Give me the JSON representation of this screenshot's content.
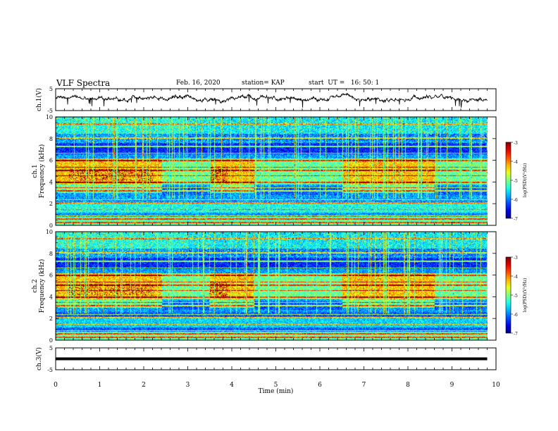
{
  "header": {
    "title": "VLF Spectra",
    "date": "Feb. 16, 2020",
    "station": "station= KAP",
    "start": "start  UT =   16: 50: 1"
  },
  "chart_data": [
    {
      "type": "line",
      "id": "ch1-waveform",
      "ylabel": "ch.1(V)",
      "yticks": [
        "5",
        "-5"
      ],
      "ylim": [
        -5,
        5
      ],
      "xlim": [
        0,
        10
      ],
      "x_extent": [
        0,
        9.8
      ],
      "description_level": "noisy signal around +0.5 V",
      "color": "#000000"
    },
    {
      "type": "heatmap",
      "id": "ch1-spectrogram",
      "ylabel": "ch.1\nFrequency (kHz)",
      "ylabel_lines": [
        "ch.1",
        "Frequency (kHz)"
      ],
      "yticks": [
        "0",
        "2",
        "4",
        "6",
        "8",
        "10"
      ],
      "ylim": [
        0,
        10
      ],
      "xlim": [
        0,
        10
      ],
      "x_extent": [
        0,
        9.8
      ],
      "colorbar": {
        "label": "log(PSD)(V²/Hz)",
        "ticks": [
          "-3",
          "-4",
          "-5",
          "-6",
          "-7"
        ],
        "range": [
          -7,
          -3
        ]
      }
    },
    {
      "type": "heatmap",
      "id": "ch2-spectrogram",
      "ylabel": "ch.2\nFrequency (kHz)",
      "ylabel_lines": [
        "ch.2",
        "Frequency (kHz)"
      ],
      "yticks": [
        "0",
        "2",
        "4",
        "6",
        "8",
        "10"
      ],
      "ylim": [
        0,
        10
      ],
      "xlim": [
        0,
        10
      ],
      "x_extent": [
        0,
        9.8
      ],
      "colorbar": {
        "label": "log(PSD)(V²/Hz)",
        "ticks": [
          "-3",
          "-4",
          "-5",
          "-6",
          "-7"
        ],
        "range": [
          -7,
          -3
        ]
      }
    },
    {
      "type": "line",
      "id": "ch3-waveform",
      "ylabel": "ch.3(V)",
      "yticks": [
        "5",
        "-5"
      ],
      "ylim": [
        -5,
        5
      ],
      "xlim": [
        0,
        10
      ],
      "x_extent": [
        0,
        9.8
      ],
      "level": 0,
      "color": "#000000"
    }
  ],
  "xaxis": {
    "label": "Time (min)",
    "ticks": [
      "0",
      "1",
      "2",
      "3",
      "4",
      "5",
      "6",
      "7",
      "8",
      "9",
      "10"
    ]
  }
}
